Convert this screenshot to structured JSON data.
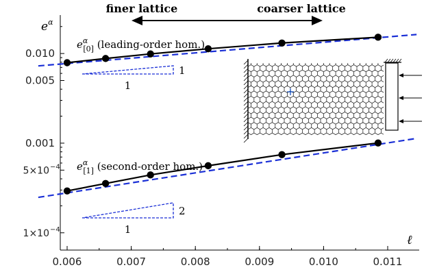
{
  "chart_data": {
    "type": "scatter",
    "title": "",
    "axes": {
      "x": {
        "label": "ℓ",
        "min": 0.0055,
        "max": 0.0115,
        "scale": "linear",
        "ticks": [
          "0.006",
          "0.007",
          "0.008",
          "0.009",
          "0.010",
          "0.011"
        ]
      },
      "y": {
        "label": "e",
        "label_sup": "α",
        "scale": "log",
        "min": 0.0001,
        "max": 0.025,
        "ticks": [
          "0.010",
          "0.005",
          "0.001",
          "5×10",
          "1×10"
        ]
      }
    },
    "y_tick_values": [
      0.01,
      0.005,
      0.001,
      0.0005,
      0.0001
    ],
    "series": [
      {
        "label_main": "e",
        "label_sup": "α",
        "label_sub": "[0]",
        "label_text": " (leading-order hom.)",
        "x": [
          0.006,
          0.0066,
          0.0073,
          0.0082,
          0.00935,
          0.01085
        ],
        "y": [
          0.0079,
          0.0088,
          0.0099,
          0.0113,
          0.0131,
          0.0152
        ],
        "fit_slope_label": "1",
        "fit_run_label": "1"
      },
      {
        "label_main": "e",
        "label_sup": "α",
        "label_sub": "[1]",
        "label_text": " (second-order hom.)",
        "x": [
          0.006,
          0.0066,
          0.0073,
          0.0082,
          0.00935,
          0.01085
        ],
        "y": [
          0.000293,
          0.000355,
          0.000442,
          0.00056,
          0.000745,
          0.001005
        ],
        "fit_slope_label": "2",
        "fit_run_label": "1"
      }
    ],
    "annotations": {
      "finer": "finer lattice",
      "coarser": "coarser lattice",
      "tick_exp": "−4"
    },
    "colors": {
      "data": "#000000",
      "fit": "#1a2fd6",
      "inset": "#000000"
    }
  }
}
